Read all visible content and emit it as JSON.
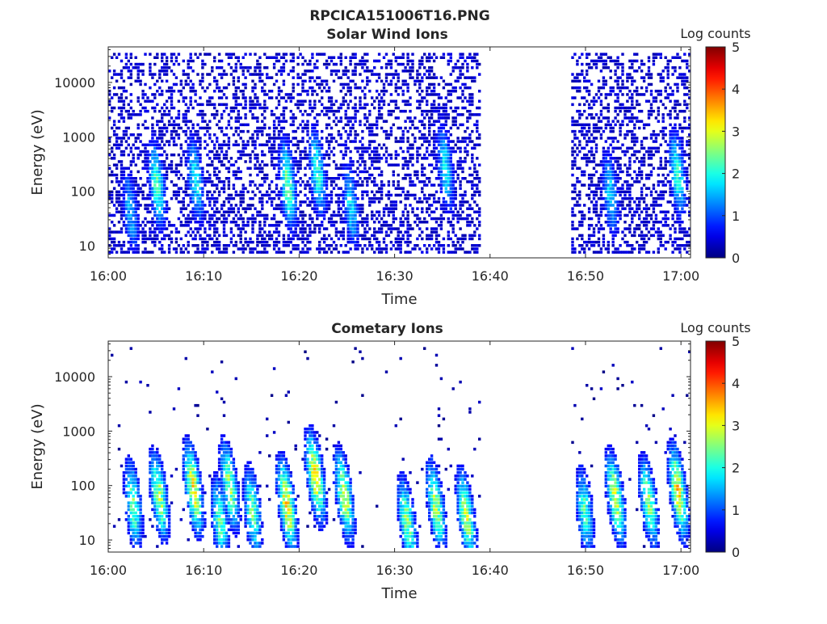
{
  "figure": {
    "title": "RPCICA151006T16.PNG"
  },
  "chart_data": [
    {
      "type": "heatmap",
      "title": "Solar Wind Ions",
      "xlabel": "Time",
      "ylabel": "Energy (eV)",
      "x_ticks": [
        "16:00",
        "16:10",
        "16:20",
        "16:30",
        "16:40",
        "16:50",
        "17:00"
      ],
      "x_range_minutes": [
        0,
        61
      ],
      "y_scale": "log",
      "y_ticks": [
        10,
        100,
        1000,
        10000
      ],
      "y_tick_labels": [
        "10",
        "100",
        "1000",
        "10000"
      ],
      "y_range": [
        6,
        45000
      ],
      "colorbar": {
        "label": "Log counts",
        "range": [
          0,
          5
        ],
        "ticks": [
          "0",
          "1",
          "2",
          "3",
          "4",
          "5"
        ],
        "colormap": "jet"
      },
      "data_intervals_minutes": [
        [
          0,
          39
        ],
        [
          48.5,
          61
        ]
      ],
      "bursts": [
        {
          "t": 2.2,
          "peak_energy": 40,
          "peak_log_counts": 1.6
        },
        {
          "t": 5.0,
          "peak_energy": 120,
          "peak_log_counts": 2.3
        },
        {
          "t": 9.0,
          "peak_energy": 150,
          "peak_log_counts": 2.0
        },
        {
          "t": 18.7,
          "peak_energy": 120,
          "peak_log_counts": 2.5
        },
        {
          "t": 21.8,
          "peak_energy": 200,
          "peak_log_counts": 2.2
        },
        {
          "t": 25.3,
          "peak_energy": 50,
          "peak_log_counts": 1.8
        },
        {
          "t": 35.2,
          "peak_energy": 250,
          "peak_log_counts": 1.9
        },
        {
          "t": 52.5,
          "peak_energy": 80,
          "peak_log_counts": 1.8
        },
        {
          "t": 59.5,
          "peak_energy": 200,
          "peak_log_counts": 2.2
        }
      ],
      "background_log_counts": 0.2
    },
    {
      "type": "heatmap",
      "title": "Cometary Ions",
      "xlabel": "Time",
      "ylabel": "Energy (eV)",
      "x_ticks": [
        "16:00",
        "16:10",
        "16:20",
        "16:30",
        "16:40",
        "16:50",
        "17:00"
      ],
      "x_range_minutes": [
        0,
        61
      ],
      "y_scale": "log",
      "y_ticks": [
        10,
        100,
        1000,
        10000
      ],
      "y_tick_labels": [
        "10",
        "100",
        "1000",
        "10000"
      ],
      "y_range": [
        6,
        45000
      ],
      "colorbar": {
        "label": "Log counts",
        "range": [
          0,
          5
        ],
        "ticks": [
          "0",
          "1",
          "2",
          "3",
          "4",
          "5"
        ],
        "colormap": "jet"
      },
      "data_intervals_minutes": [
        [
          0,
          39
        ],
        [
          48.5,
          61
        ]
      ],
      "bursts": [
        {
          "t": 2.5,
          "peak_energy": 40,
          "peak_log_counts": 2.5
        },
        {
          "t": 5.2,
          "peak_energy": 60,
          "peak_log_counts": 2.8
        },
        {
          "t": 8.8,
          "peak_energy": 80,
          "peak_log_counts": 3.2
        },
        {
          "t": 11.6,
          "peak_energy": 20,
          "peak_log_counts": 2.4
        },
        {
          "t": 12.6,
          "peak_energy": 90,
          "peak_log_counts": 2.7
        },
        {
          "t": 15.0,
          "peak_energy": 30,
          "peak_log_counts": 2.5
        },
        {
          "t": 18.6,
          "peak_energy": 40,
          "peak_log_counts": 3.4
        },
        {
          "t": 21.6,
          "peak_energy": 130,
          "peak_log_counts": 3.3
        },
        {
          "t": 24.6,
          "peak_energy": 60,
          "peak_log_counts": 3.0
        },
        {
          "t": 31.2,
          "peak_energy": 20,
          "peak_log_counts": 2.6
        },
        {
          "t": 34.2,
          "peak_energy": 40,
          "peak_log_counts": 2.8
        },
        {
          "t": 37.4,
          "peak_energy": 25,
          "peak_log_counts": 2.9
        },
        {
          "t": 49.8,
          "peak_energy": 30,
          "peak_log_counts": 2.3
        },
        {
          "t": 53.0,
          "peak_energy": 55,
          "peak_log_counts": 3.0
        },
        {
          "t": 56.5,
          "peak_energy": 45,
          "peak_log_counts": 2.7
        },
        {
          "t": 59.6,
          "peak_energy": 70,
          "peak_log_counts": 3.4
        }
      ],
      "background_log_counts": 0.0
    }
  ]
}
